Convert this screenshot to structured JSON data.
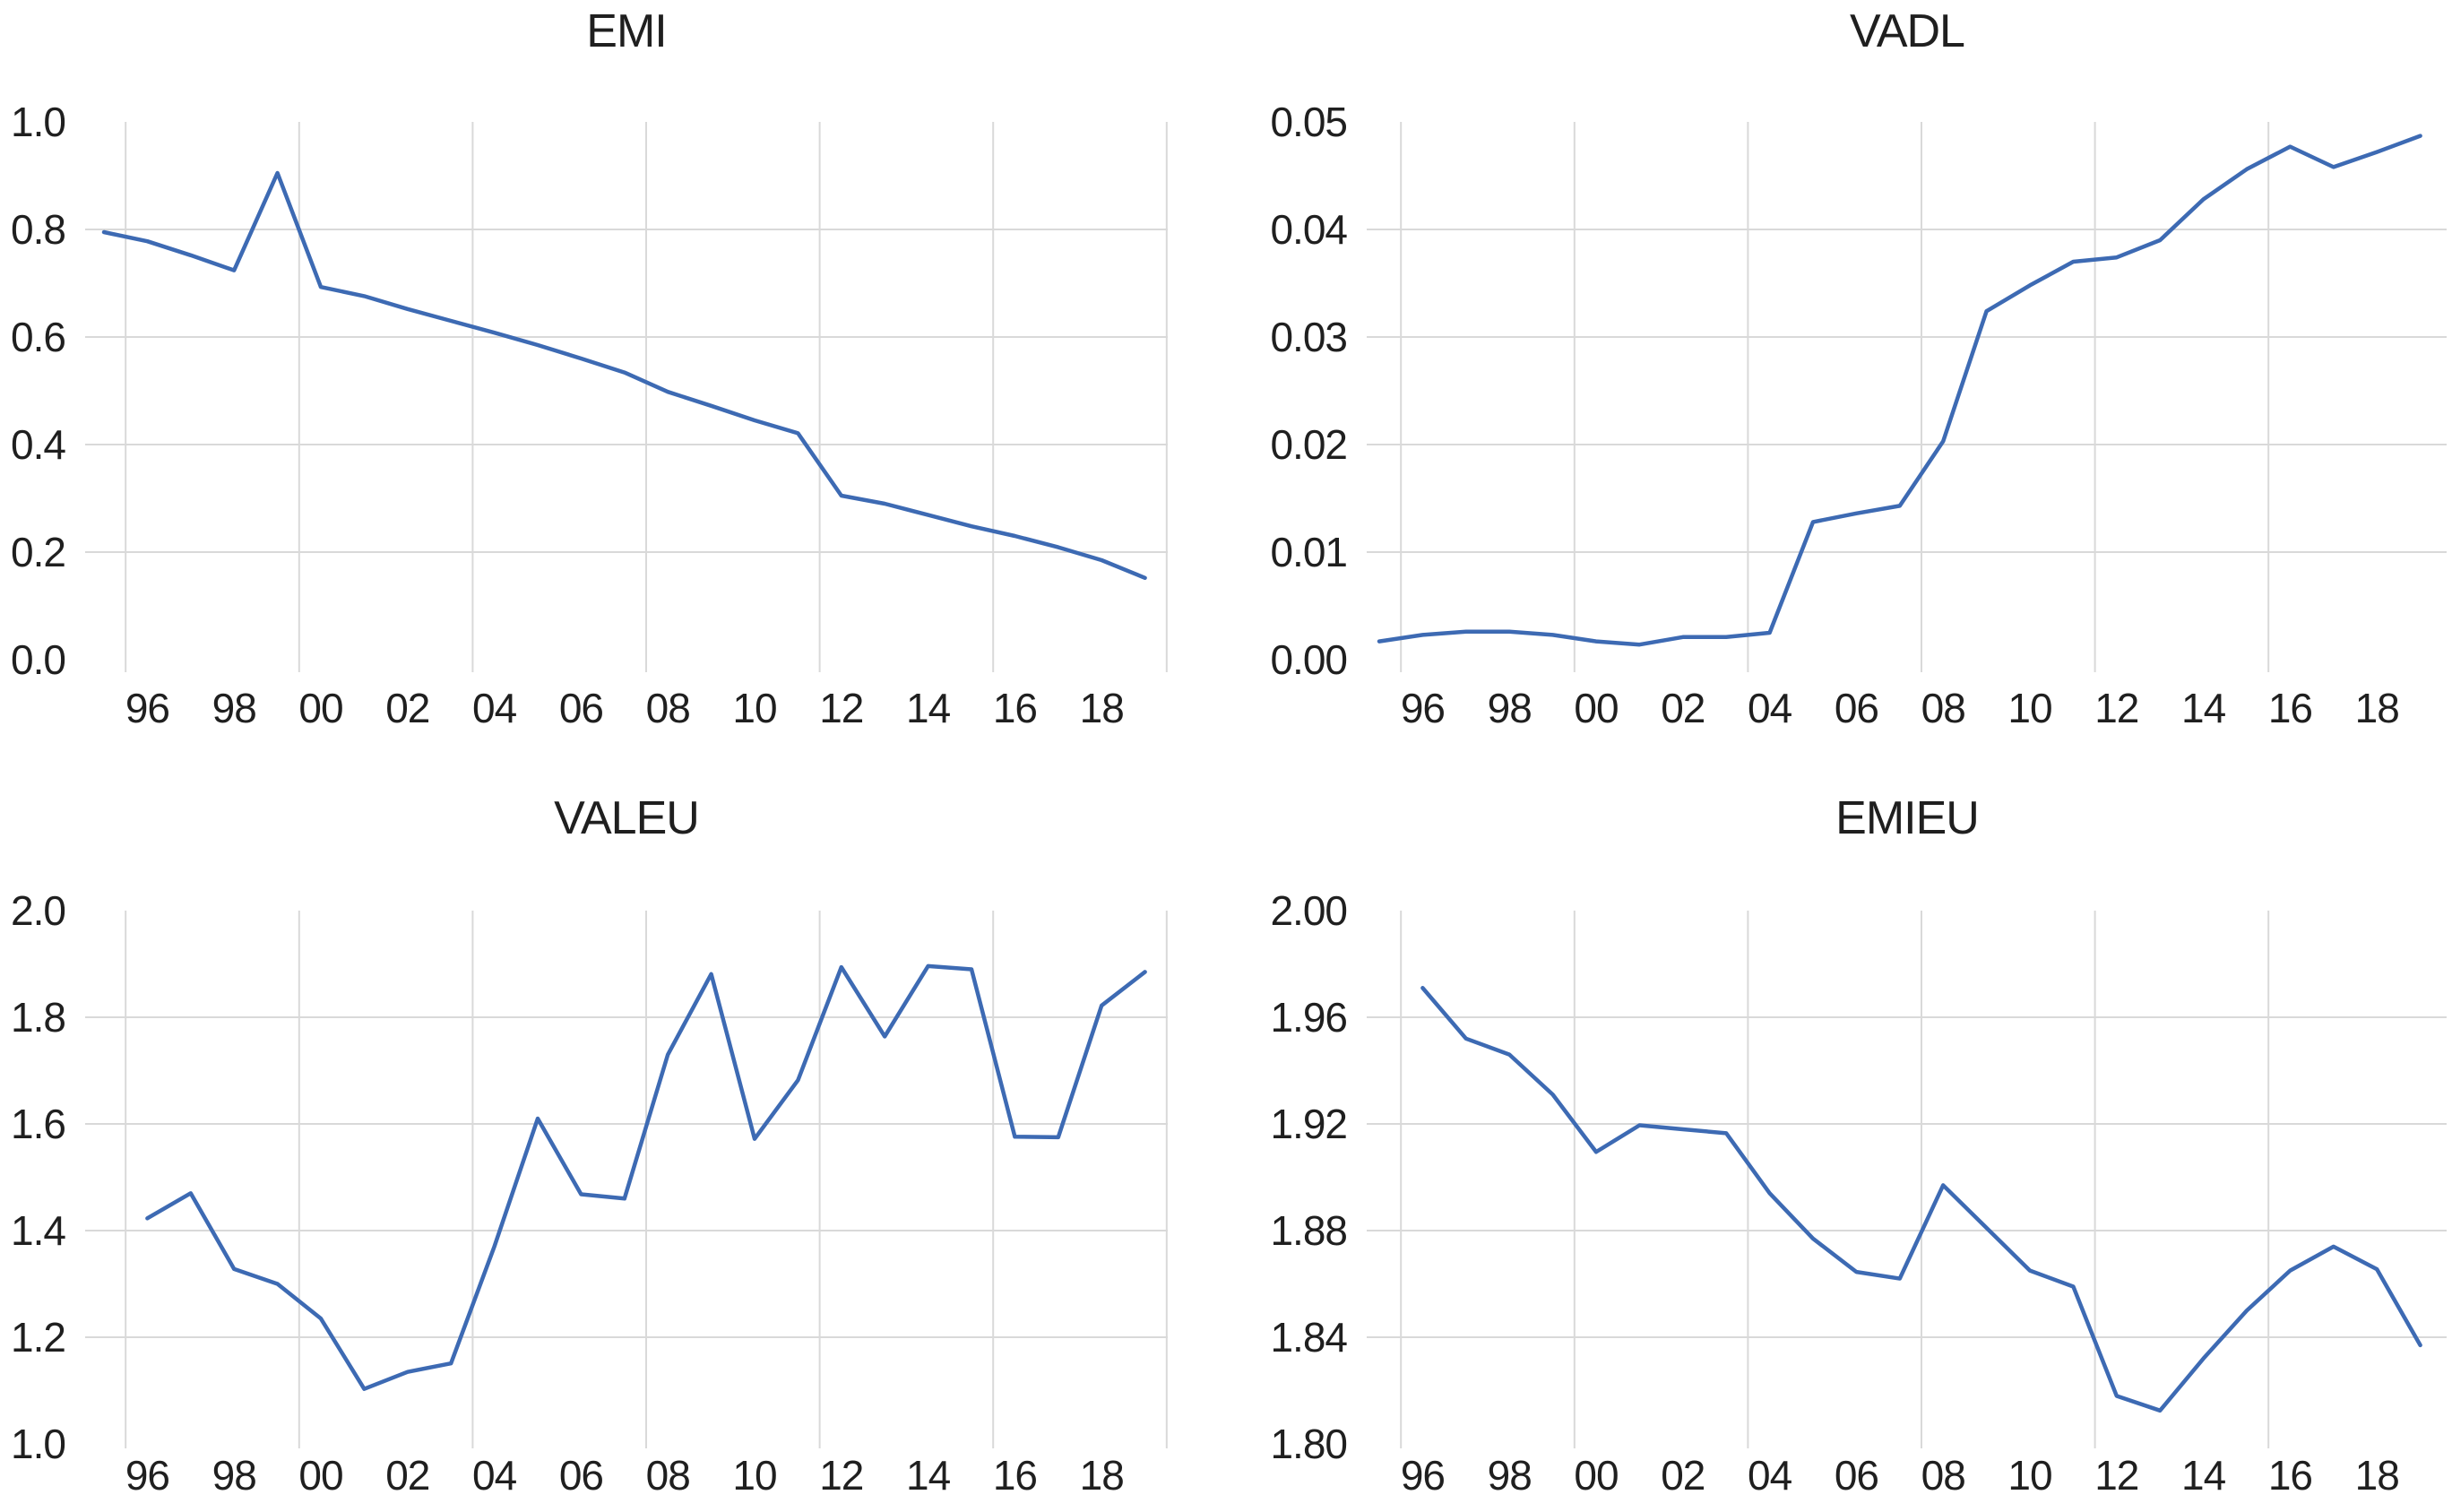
{
  "figure": {
    "background": "#FFFFFF",
    "line_color": "#3D6AB3",
    "grid_color": "#D9D9D9",
    "text_color": "#1F1F1F"
  },
  "chart_data": [
    {
      "type": "line",
      "title": "EMI",
      "legend": "none",
      "grid": "on",
      "x": [
        1995,
        1996,
        1997,
        1998,
        1999,
        2000,
        2001,
        2002,
        2003,
        2004,
        2005,
        2006,
        2007,
        2008,
        2009,
        2010,
        2011,
        2012,
        2013,
        2014,
        2015,
        2016,
        2017,
        2018,
        2019
      ],
      "values": [
        0.795,
        0.778,
        0.752,
        0.724,
        0.905,
        0.693,
        0.676,
        0.652,
        0.63,
        0.608,
        0.585,
        0.56,
        0.534,
        0.498,
        0.472,
        0.445,
        0.421,
        0.305,
        0.29,
        0.269,
        0.248,
        0.23,
        0.209,
        0.185,
        0.152
      ],
      "ylim": [
        0.0,
        1.0
      ],
      "yticks": [
        0.0,
        0.2,
        0.4,
        0.6,
        0.8,
        1.0
      ],
      "ytick_labels": [
        "0.0",
        "0.2",
        "0.4",
        "0.6",
        "0.8",
        "1.0"
      ],
      "xtick_years": [
        1996,
        1998,
        2000,
        2002,
        2004,
        2006,
        2008,
        2010,
        2012,
        2014,
        2016,
        2018
      ],
      "xtick_labels": [
        "96",
        "98",
        "00",
        "02",
        "04",
        "06",
        "08",
        "10",
        "12",
        "14",
        "16",
        "18"
      ],
      "grid_years": [
        1995.5,
        1999.5,
        2003.5,
        2007.5,
        2011.5,
        2015.5,
        2019.5
      ]
    },
    {
      "type": "line",
      "title": "VADL",
      "legend": "none",
      "grid": "on",
      "x": [
        1995,
        1996,
        1997,
        1998,
        1999,
        2000,
        2001,
        2002,
        2003,
        2004,
        2005,
        2006,
        2007,
        2008,
        2009,
        2010,
        2011,
        2012,
        2013,
        2014,
        2015,
        2016,
        2017,
        2018,
        2019
      ],
      "values": [
        0.0017,
        0.0023,
        0.0026,
        0.0026,
        0.0023,
        0.0017,
        0.0014,
        0.0021,
        0.0021,
        0.0025,
        0.0128,
        0.0136,
        0.0143,
        0.0203,
        0.0324,
        0.0348,
        0.037,
        0.0374,
        0.039,
        0.0428,
        0.0456,
        0.0477,
        0.0458,
        0.0472,
        0.0487
      ],
      "ylim": [
        0.0,
        0.05
      ],
      "yticks": [
        0.0,
        0.01,
        0.02,
        0.03,
        0.04,
        0.05
      ],
      "ytick_labels": [
        "0.00",
        "0.01",
        "0.02",
        "0.03",
        "0.04",
        "0.05"
      ],
      "xtick_years": [
        1996,
        1998,
        2000,
        2002,
        2004,
        2006,
        2008,
        2010,
        2012,
        2014,
        2016,
        2018
      ],
      "xtick_labels": [
        "96",
        "98",
        "00",
        "02",
        "04",
        "06",
        "08",
        "10",
        "12",
        "14",
        "16",
        "18"
      ],
      "grid_years": [
        1995.5,
        1999.5,
        2003.5,
        2007.5,
        2011.5,
        2015.5
      ]
    },
    {
      "type": "line",
      "title": "VALEU",
      "legend": "none",
      "grid": "on",
      "x": [
        1996,
        1997,
        1998,
        1999,
        2000,
        2001,
        2002,
        2003,
        2004,
        2005,
        2006,
        2007,
        2008,
        2009,
        2010,
        2011,
        2012,
        2013,
        2014,
        2015,
        2016,
        2017,
        2018,
        2019
      ],
      "values": [
        1.423,
        1.47,
        1.328,
        1.3,
        1.235,
        1.103,
        1.135,
        1.151,
        1.37,
        1.61,
        1.468,
        1.46,
        1.73,
        1.881,
        1.572,
        1.682,
        1.894,
        1.764,
        1.896,
        1.89,
        1.576,
        1.575,
        1.822,
        1.885
      ],
      "ylim": [
        1.0,
        2.0
      ],
      "yticks": [
        1.0,
        1.2,
        1.4,
        1.6,
        1.8,
        2.0
      ],
      "ytick_labels": [
        "1.0",
        "1.2",
        "1.4",
        "1.6",
        "1.8",
        "2.0"
      ],
      "xtick_years": [
        1996,
        1998,
        2000,
        2002,
        2004,
        2006,
        2008,
        2010,
        2012,
        2014,
        2016,
        2018
      ],
      "xtick_labels": [
        "96",
        "98",
        "00",
        "02",
        "04",
        "06",
        "08",
        "10",
        "12",
        "14",
        "16",
        "18"
      ],
      "grid_years": [
        1995.5,
        1999.5,
        2003.5,
        2007.5,
        2011.5,
        2015.5,
        2019.5
      ]
    },
    {
      "type": "line",
      "title": "EMIEU",
      "legend": "none",
      "grid": "on",
      "x": [
        1996,
        1997,
        1998,
        1999,
        2000,
        2001,
        2002,
        2003,
        2004,
        2005,
        2006,
        2007,
        2008,
        2009,
        2010,
        2011,
        2012,
        2013,
        2014,
        2015,
        2016,
        2017,
        2018,
        2019
      ],
      "values": [
        1.971,
        1.952,
        1.946,
        1.931,
        1.9095,
        1.9195,
        1.918,
        1.9165,
        1.894,
        1.877,
        1.8645,
        1.862,
        1.897,
        1.881,
        1.865,
        1.859,
        1.818,
        1.8125,
        1.832,
        1.85,
        1.865,
        1.874,
        1.8655,
        1.837
      ],
      "ylim": [
        1.8,
        2.0
      ],
      "yticks": [
        1.8,
        1.84,
        1.88,
        1.92,
        1.96,
        2.0
      ],
      "ytick_labels": [
        "1.80",
        "1.84",
        "1.88",
        "1.92",
        "1.96",
        "2.00"
      ],
      "xtick_years": [
        1996,
        1998,
        2000,
        2002,
        2004,
        2006,
        2008,
        2010,
        2012,
        2014,
        2016,
        2018
      ],
      "xtick_labels": [
        "96",
        "98",
        "00",
        "02",
        "04",
        "06",
        "08",
        "10",
        "12",
        "14",
        "16",
        "18"
      ],
      "grid_years": [
        1995.5,
        1999.5,
        2003.5,
        2007.5,
        2011.5,
        2015.5
      ]
    }
  ]
}
